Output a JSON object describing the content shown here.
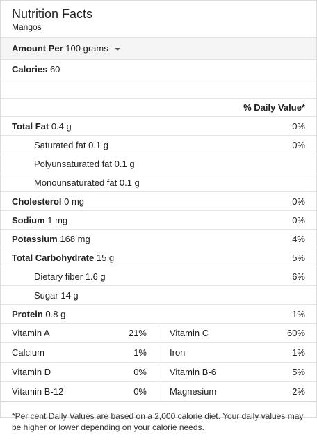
{
  "header": {
    "title": "Nutrition Facts",
    "subtitle": "Mangos"
  },
  "amount": {
    "label": "Amount Per",
    "value": "100 grams"
  },
  "calories": {
    "label": "Calories",
    "value": "60"
  },
  "daily_value_header": "% Daily Value*",
  "nutrients": [
    {
      "name": "Total Fat",
      "amount": "0.4 g",
      "dv": "0%"
    },
    {
      "name": "Saturated fat",
      "amount": "0.1 g",
      "dv": "0%"
    },
    {
      "name": "Polyunsaturated fat",
      "amount": "0.1 g",
      "dv": ""
    },
    {
      "name": "Monounsaturated fat",
      "amount": "0.1 g",
      "dv": ""
    },
    {
      "name": "Cholesterol",
      "amount": "0 mg",
      "dv": "0%"
    },
    {
      "name": "Sodium",
      "amount": "1 mg",
      "dv": "0%"
    },
    {
      "name": "Potassium",
      "amount": "168 mg",
      "dv": "4%"
    },
    {
      "name": "Total Carbohydrate",
      "amount": "15 g",
      "dv": "5%"
    },
    {
      "name": "Dietary fiber",
      "amount": "1.6 g",
      "dv": "6%"
    },
    {
      "name": "Sugar",
      "amount": "14 g",
      "dv": ""
    },
    {
      "name": "Protein",
      "amount": "0.8 g",
      "dv": "1%"
    }
  ],
  "vitamins": [
    {
      "left": {
        "name": "Vitamin A",
        "dv": "21%"
      },
      "right": {
        "name": "Vitamin C",
        "dv": "60%"
      }
    },
    {
      "left": {
        "name": "Calcium",
        "dv": "1%"
      },
      "right": {
        "name": "Iron",
        "dv": "1%"
      }
    },
    {
      "left": {
        "name": "Vitamin D",
        "dv": "0%"
      },
      "right": {
        "name": "Vitamin B-6",
        "dv": "5%"
      }
    },
    {
      "left": {
        "name": "Vitamin B-12",
        "dv": "0%"
      },
      "right": {
        "name": "Magnesium",
        "dv": "2%"
      }
    }
  ],
  "footer": "*Per cent Daily Values are based on a 2,000 calorie diet. Your daily values may be higher or lower depending on your calorie needs."
}
